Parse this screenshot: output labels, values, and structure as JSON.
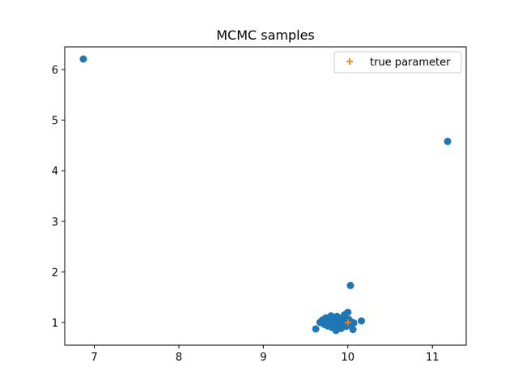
{
  "chart_data": {
    "type": "scatter",
    "title": "MCMC samples",
    "xlabel": "",
    "ylabel": "",
    "xlim": [
      6.65,
      11.4
    ],
    "ylim": [
      0.55,
      6.45
    ],
    "xticks": [
      7,
      8,
      9,
      10,
      11
    ],
    "yticks": [
      1,
      2,
      3,
      4,
      5,
      6
    ],
    "grid": false,
    "legend": {
      "placement": "upper-right",
      "entries": [
        "true parameter"
      ]
    },
    "series": [
      {
        "color": "#1f77b4",
        "marker": "circle",
        "points": [
          [
            6.87,
            6.21
          ],
          [
            11.18,
            4.58
          ],
          [
            10.03,
            1.73
          ],
          [
            9.62,
            0.87
          ],
          [
            9.67,
            1.0
          ],
          [
            9.7,
            1.05
          ],
          [
            9.72,
            0.96
          ],
          [
            9.74,
            1.09
          ],
          [
            9.76,
            0.93
          ],
          [
            9.78,
            1.02
          ],
          [
            9.8,
            1.13
          ],
          [
            9.81,
            0.9
          ],
          [
            9.83,
            0.98
          ],
          [
            9.84,
            1.07
          ],
          [
            9.86,
            0.84
          ],
          [
            9.87,
            1.12
          ],
          [
            9.88,
            1.0
          ],
          [
            9.9,
            0.94
          ],
          [
            9.91,
            1.05
          ],
          [
            9.92,
            0.88
          ],
          [
            9.94,
            1.1
          ],
          [
            9.95,
            0.97
          ],
          [
            9.96,
            1.15
          ],
          [
            9.97,
            1.03
          ],
          [
            9.98,
            0.92
          ],
          [
            10.0,
            1.2
          ],
          [
            10.01,
            1.06
          ],
          [
            10.02,
            0.95
          ],
          [
            10.04,
            1.01
          ],
          [
            10.06,
            0.86
          ],
          [
            10.07,
            0.99
          ],
          [
            10.16,
            1.03
          ],
          [
            9.73,
            1.01
          ],
          [
            9.79,
            0.97
          ],
          [
            9.85,
            1.03
          ],
          [
            9.89,
            0.9
          ],
          [
            9.93,
            1.0
          ],
          [
            9.99,
            0.99
          ],
          [
            9.82,
            1.08
          ],
          [
            9.77,
            0.95
          ]
        ]
      },
      {
        "name": "true parameter",
        "color": "#ff7f0e",
        "marker": "plus",
        "points": [
          [
            10.0,
            1.0
          ]
        ]
      }
    ]
  }
}
